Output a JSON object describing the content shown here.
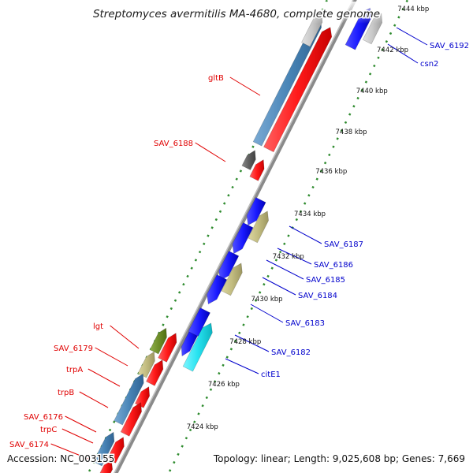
{
  "title": "Streptomyces avermitilis MA-4680, complete genome",
  "accession": "Accession: NC_003155",
  "summary": "Topology: linear; Length: 9,025,608 bp; Genes: 7,669",
  "colors": {
    "backbone": "#909090",
    "tick_dots": "#2e8b2e",
    "left_label": "#e00000",
    "right_label": "#0000cc",
    "gene_red": "#ff1a1a",
    "gene_blue": "#1a1aff",
    "gene_steel": "#4a86b8",
    "gene_olive": "#c2bc80",
    "gene_green": "#6f8f2a",
    "gene_cyan": "#27e3f0",
    "gene_gray": "#606060",
    "gene_light": "#c8c8c8"
  },
  "ticks": [
    "7424 kbp",
    "7426 kbp",
    "7428 kbp",
    "7430 kbp",
    "7432 kbp",
    "7434 kbp",
    "7436 kbp",
    "7438 kbp",
    "7440 kbp",
    "7442 kbp",
    "7444 kbp"
  ],
  "left_labels": [
    "gltB",
    "SAV_6188",
    "lgt",
    "SAV_6179",
    "trpA",
    "trpB",
    "SAV_6176",
    "trpC",
    "SAV_6174"
  ],
  "right_labels": [
    "SAV_6192",
    "csn2",
    "SAV_6187",
    "SAV_6186",
    "SAV_6185",
    "SAV_6184",
    "SAV_6183",
    "SAV_6182",
    "citE1"
  ]
}
